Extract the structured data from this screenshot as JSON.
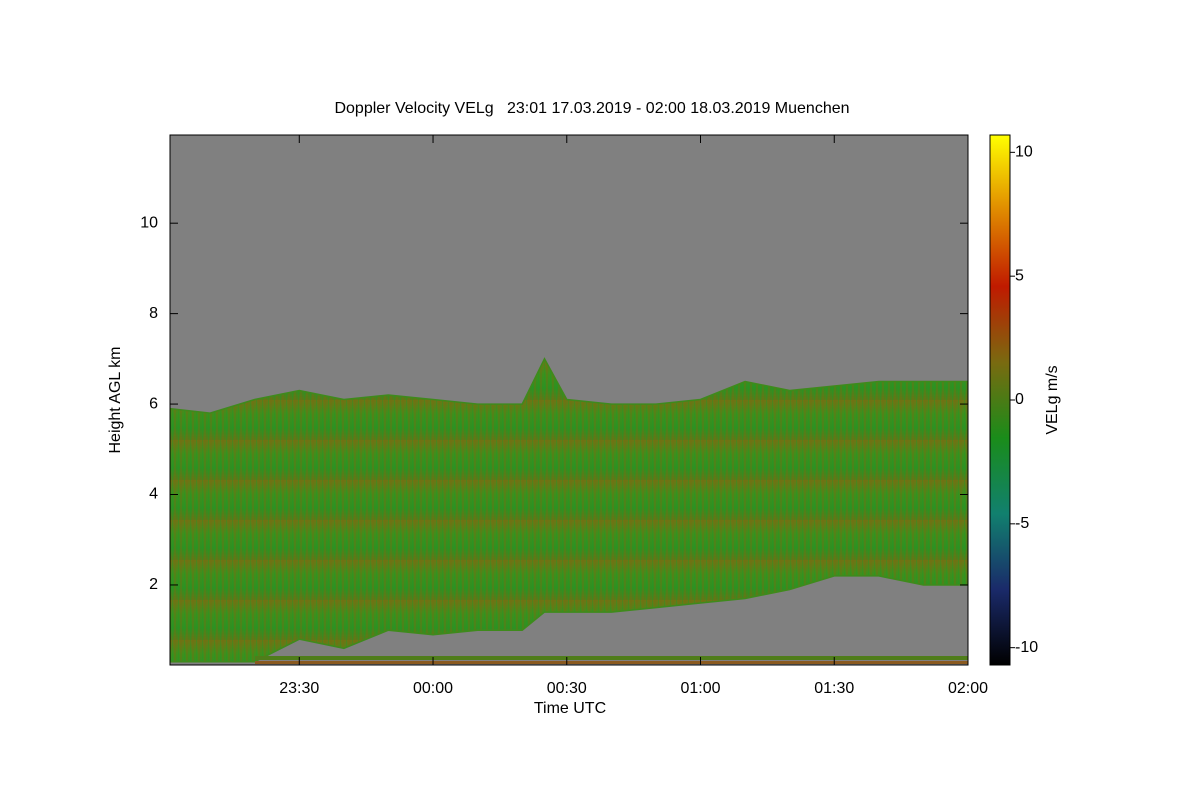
{
  "chart_data": {
    "type": "range-area",
    "title": "Doppler Velocity VELg   23:01 17.03.2019 - 02:00 18.03.2019 Muenchen",
    "x_label": "Time UTC",
    "y_label": "Height AGL km",
    "x": [
      -59,
      -50,
      -40,
      -30,
      -20,
      -10,
      0,
      10,
      20,
      25,
      30,
      40,
      50,
      60,
      70,
      80,
      90,
      100,
      110,
      120
    ],
    "high": [
      5.9,
      5.8,
      6.1,
      6.3,
      6.1,
      6.2,
      6.1,
      6.0,
      6.0,
      7.0,
      6.1,
      6.0,
      6.0,
      6.1,
      6.5,
      6.3,
      6.4,
      6.5,
      6.5,
      6.5
    ],
    "low": [
      0.3,
      0.3,
      0.3,
      0.8,
      0.6,
      1.0,
      0.9,
      1.0,
      1.0,
      1.4,
      1.4,
      1.4,
      1.5,
      1.6,
      1.7,
      1.9,
      2.2,
      2.2,
      2.0,
      2.0
    ],
    "color": "#3f8a1c",
    "background": "#808080",
    "xlim": [
      -59,
      120
    ],
    "xticks": [
      {
        "value": -30,
        "label": "23:30"
      },
      {
        "value": 0,
        "label": "00:00"
      },
      {
        "value": 30,
        "label": "00:30"
      },
      {
        "value": 60,
        "label": "01:00"
      },
      {
        "value": 90,
        "label": "01:30"
      },
      {
        "value": 120,
        "label": "02:00"
      }
    ],
    "ylim": [
      0.23,
      11.95
    ],
    "yticks": [
      2,
      4,
      6,
      8,
      10
    ],
    "colorbar": {
      "label": "VELg m/s",
      "lim": [
        -10.7,
        10.7
      ],
      "ticks": [
        -10,
        -5,
        0,
        5,
        10
      ],
      "colormap": [
        "#000000",
        "#1a2a6a",
        "#11806e",
        "#1a8c1a",
        "#7a6a10",
        "#c01a00",
        "#e08a00",
        "#ffff00"
      ]
    }
  }
}
